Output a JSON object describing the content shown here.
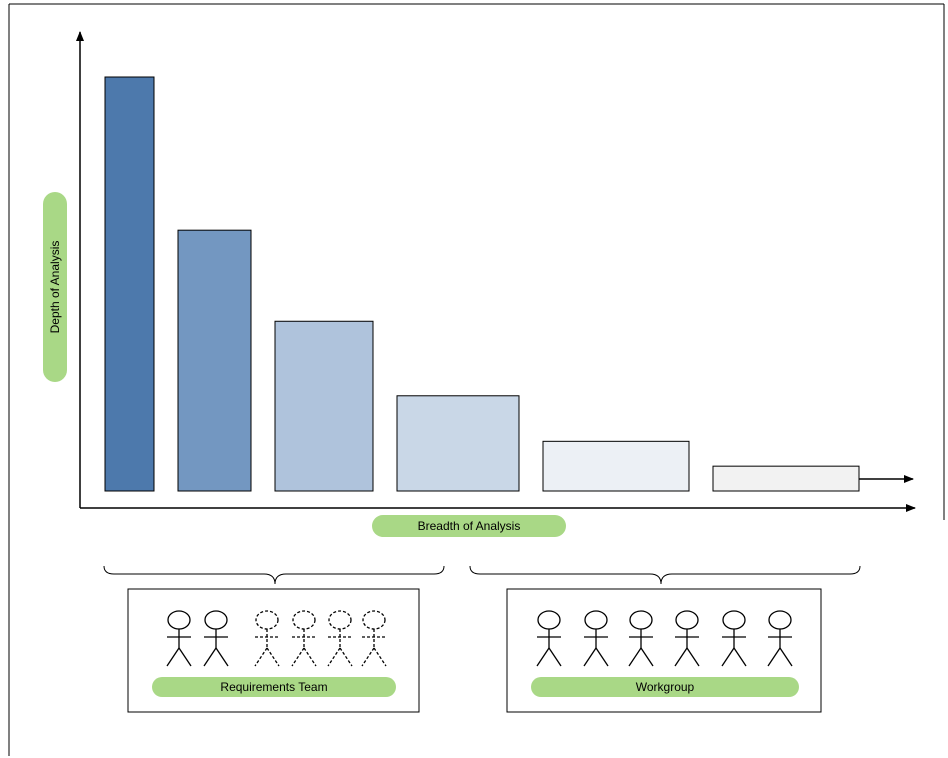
{
  "axes": {
    "y_label": "Depth of Analysis",
    "x_label": "Breadth of Analysis"
  },
  "bars": [
    {
      "value": 100,
      "color": "#4d79ac"
    },
    {
      "value": 63,
      "color": "#7397c1"
    },
    {
      "value": 41,
      "color": "#afc3dc"
    },
    {
      "value": 23,
      "color": "#c9d7e7"
    },
    {
      "value": 12,
      "color": "#ecf0f5"
    },
    {
      "value": 6,
      "color": "#f2f2f2"
    }
  ],
  "groups": {
    "requirements_team": {
      "label": "Requirements Team",
      "solid_figures": 2,
      "dashed_figures": 4
    },
    "workgroup": {
      "label": "Workgroup",
      "solid_figures": 6
    }
  },
  "colors": {
    "pill": "#a9d886",
    "stroke": "#000000"
  }
}
